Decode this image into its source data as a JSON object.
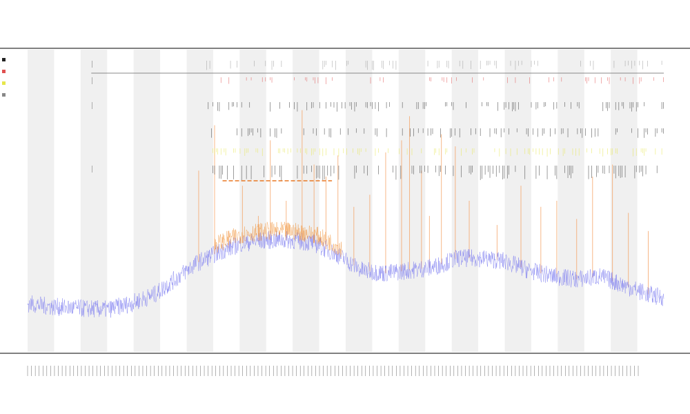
{
  "chart_data": {
    "type": "line",
    "title": "",
    "subtitle_lines": [
      "",
      ""
    ],
    "xlabel": "",
    "ylabel": "",
    "ylim": [
      0,
      100
    ],
    "x_count": 1600,
    "grid": false,
    "legend_position": "top-left",
    "x_tick_count": 160,
    "band_count": 12,
    "colors": {
      "background": "#ffffff",
      "band": "#f0f0f0",
      "frame": "#555555",
      "line_main": "#7b7bf0",
      "line_overlay": "#f08a2a",
      "spike_orange": "#f5a060",
      "track_red": "#e05050",
      "track_yellow": "#e6e64a",
      "track_dark": "#333333",
      "track_gray": "#999999",
      "hbar_orange": "#e87722"
    },
    "legend": [
      {
        "label": "",
        "color": "#222222"
      },
      {
        "label": "",
        "color": "#e05050"
      },
      {
        "label": "",
        "color": "#e6e64a"
      },
      {
        "label": "",
        "color": "#888888"
      }
    ],
    "baseline_profile": [
      {
        "x": 0,
        "y": 16
      },
      {
        "x": 60,
        "y": 15
      },
      {
        "x": 120,
        "y": 14.5
      },
      {
        "x": 200,
        "y": 14
      },
      {
        "x": 260,
        "y": 16
      },
      {
        "x": 320,
        "y": 19
      },
      {
        "x": 370,
        "y": 24
      },
      {
        "x": 420,
        "y": 29
      },
      {
        "x": 480,
        "y": 33
      },
      {
        "x": 540,
        "y": 36
      },
      {
        "x": 600,
        "y": 37
      },
      {
        "x": 660,
        "y": 37
      },
      {
        "x": 720,
        "y": 36
      },
      {
        "x": 780,
        "y": 32
      },
      {
        "x": 840,
        "y": 27
      },
      {
        "x": 900,
        "y": 26
      },
      {
        "x": 960,
        "y": 27
      },
      {
        "x": 1020,
        "y": 28
      },
      {
        "x": 1080,
        "y": 31
      },
      {
        "x": 1140,
        "y": 31
      },
      {
        "x": 1200,
        "y": 30
      },
      {
        "x": 1260,
        "y": 27
      },
      {
        "x": 1320,
        "y": 25
      },
      {
        "x": 1380,
        "y": 24
      },
      {
        "x": 1440,
        "y": 25
      },
      {
        "x": 1500,
        "y": 22
      },
      {
        "x": 1560,
        "y": 19
      },
      {
        "x": 1599,
        "y": 18
      }
    ],
    "overlay_range": [
      470,
      790
    ],
    "spike_positions": [
      430,
      470,
      505,
      540,
      580,
      610,
      650,
      690,
      720,
      750,
      780,
      820,
      860,
      900,
      940,
      960,
      990,
      1010,
      1040,
      1075,
      1110,
      1180,
      1240,
      1290,
      1330,
      1380,
      1420,
      1470,
      1510,
      1560
    ],
    "spike_heights": [
      60,
      75,
      40,
      55,
      45,
      70,
      50,
      80,
      62,
      58,
      65,
      48,
      52,
      66,
      70,
      78,
      60,
      45,
      72,
      68,
      50,
      42,
      55,
      48,
      50,
      44,
      58,
      62,
      46,
      40
    ],
    "hbar_range": [
      490,
      765
    ],
    "top_line_range": [
      160,
      1599
    ]
  }
}
